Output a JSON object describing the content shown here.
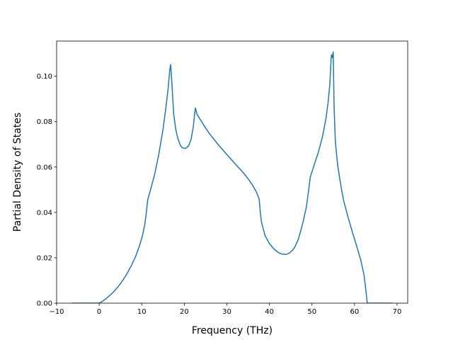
{
  "chart_data": {
    "type": "line",
    "title": "",
    "xlabel": "Frequency (THz)",
    "ylabel": "Partial Density of States",
    "xlim": [
      -10,
      72.5
    ],
    "ylim": [
      0,
      0.1155
    ],
    "xticks": [
      -10,
      0,
      10,
      20,
      30,
      40,
      50,
      60,
      70
    ],
    "yticks": [
      0.0,
      0.02,
      0.04,
      0.06,
      0.08,
      0.1
    ],
    "ytick_labels": [
      "0.00",
      "0.02",
      "0.04",
      "0.06",
      "0.08",
      "0.10"
    ],
    "grid": false,
    "legend": "none",
    "series": [
      {
        "color": "#1f77b4",
        "x": [
          -6.5,
          0.0,
          0.5,
          1.5,
          2.5,
          3.5,
          4.5,
          5.5,
          6.5,
          7.5,
          8.5,
          9.5,
          10.2,
          10.7,
          11.0,
          11.4,
          12.0,
          13.0,
          14.0,
          15.0,
          15.7,
          16.2,
          16.6,
          16.8,
          17.1,
          17.5,
          18.0,
          18.5,
          19.0,
          19.5,
          20.3,
          21.0,
          21.6,
          22.1,
          22.4,
          22.6,
          23.0,
          24.0,
          25.0,
          26.0,
          28.0,
          30.0,
          32.0,
          34.0,
          35.0,
          36.0,
          37.0,
          37.6,
          37.9,
          38.1,
          38.4,
          39.0,
          40.0,
          41.0,
          42.0,
          43.0,
          44.0,
          44.8,
          45.5,
          46.0,
          46.8,
          47.5,
          48.0,
          48.7,
          49.2,
          49.6,
          50.5,
          51.5,
          52.5,
          53.3,
          53.8,
          54.2,
          54.5,
          54.6,
          54.8,
          55.0,
          55.2,
          55.5,
          56.0,
          56.5,
          57.0,
          57.5,
          58.5,
          59.5,
          60.5,
          61.5,
          62.2,
          62.5,
          62.8,
          63.0,
          69.0
        ],
        "y": [
          0.0,
          0.0,
          0.0005,
          0.0018,
          0.0034,
          0.0052,
          0.0074,
          0.0099,
          0.0129,
          0.0163,
          0.0203,
          0.0254,
          0.03,
          0.0345,
          0.0385,
          0.0455,
          0.0495,
          0.0565,
          0.0655,
          0.0765,
          0.0865,
          0.0945,
          0.103,
          0.1052,
          0.0965,
          0.0835,
          0.0765,
          0.0725,
          0.0698,
          0.0685,
          0.0682,
          0.0693,
          0.0722,
          0.0775,
          0.0828,
          0.086,
          0.0832,
          0.0802,
          0.0772,
          0.0745,
          0.0698,
          0.0655,
          0.0613,
          0.0572,
          0.0548,
          0.0521,
          0.0488,
          0.0458,
          0.0395,
          0.0362,
          0.0338,
          0.0297,
          0.0263,
          0.024,
          0.0224,
          0.0216,
          0.0215,
          0.0222,
          0.0235,
          0.0248,
          0.0282,
          0.0328,
          0.0365,
          0.0425,
          0.0495,
          0.0555,
          0.0608,
          0.0665,
          0.0735,
          0.0815,
          0.0885,
          0.0965,
          0.1075,
          0.1095,
          0.1082,
          0.1107,
          0.0868,
          0.0712,
          0.0615,
          0.0552,
          0.0496,
          0.0448,
          0.0378,
          0.0313,
          0.0252,
          0.0188,
          0.0128,
          0.0085,
          0.0035,
          0.0,
          0.0
        ]
      }
    ]
  }
}
